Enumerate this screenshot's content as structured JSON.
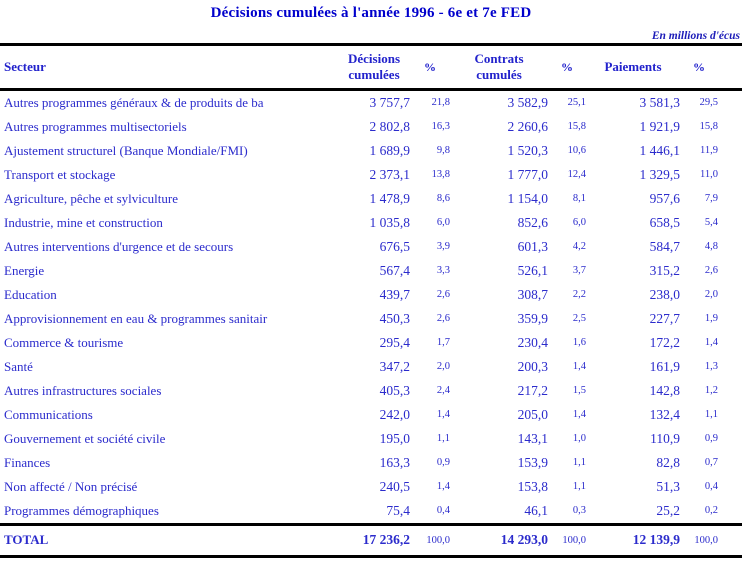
{
  "title": "Décisions cumulées à l'année 1996 - 6e et 7e FED",
  "unit_note": "En millions d'écus",
  "colors": {
    "title_blue": "#0000cc",
    "text_blue": "#2b2bcc",
    "note_blue": "#1c1cb8",
    "rule_black": "#000000",
    "background": "#ffffff"
  },
  "table": {
    "header": {
      "secteur": "Secteur",
      "decisions_line1": "Décisions",
      "decisions_line2": "cumulées",
      "pct": "%",
      "contrats_line1": "Contrats",
      "contrats_line2": "cumulés",
      "paiements": "Paiements"
    },
    "row_keys": [
      "secteur",
      "decisions",
      "decisions_pct",
      "contrats",
      "contrats_pct",
      "paiements",
      "paiements_pct"
    ],
    "cell_classes": [
      "cell-secteur",
      "cell-num",
      "cell-pct",
      "cell-num",
      "cell-pct",
      "cell-num",
      "cell-pct cell-pct-last"
    ],
    "rows": [
      {
        "secteur": "Autres programmes généraux & de produits de ba",
        "decisions": "3 757,7",
        "decisions_pct": "21,8",
        "contrats": "3 582,9",
        "contrats_pct": "25,1",
        "paiements": "3 581,3",
        "paiements_pct": "29,5"
      },
      {
        "secteur": "Autres programmes multisectoriels",
        "decisions": "2 802,8",
        "decisions_pct": "16,3",
        "contrats": "2 260,6",
        "contrats_pct": "15,8",
        "paiements": "1 921,9",
        "paiements_pct": "15,8"
      },
      {
        "secteur": "Ajustement structurel (Banque Mondiale/FMI)",
        "decisions": "1 689,9",
        "decisions_pct": "9,8",
        "contrats": "1 520,3",
        "contrats_pct": "10,6",
        "paiements": "1 446,1",
        "paiements_pct": "11,9"
      },
      {
        "secteur": "Transport et stockage",
        "decisions": "2 373,1",
        "decisions_pct": "13,8",
        "contrats": "1 777,0",
        "contrats_pct": "12,4",
        "paiements": "1 329,5",
        "paiements_pct": "11,0"
      },
      {
        "secteur": "Agriculture, pêche et sylviculture",
        "decisions": "1 478,9",
        "decisions_pct": "8,6",
        "contrats": "1 154,0",
        "contrats_pct": "8,1",
        "paiements": "957,6",
        "paiements_pct": "7,9"
      },
      {
        "secteur": "Industrie, mine et construction",
        "decisions": "1 035,8",
        "decisions_pct": "6,0",
        "contrats": "852,6",
        "contrats_pct": "6,0",
        "paiements": "658,5",
        "paiements_pct": "5,4"
      },
      {
        "secteur": "Autres interventions d'urgence et de secours",
        "decisions": "676,5",
        "decisions_pct": "3,9",
        "contrats": "601,3",
        "contrats_pct": "4,2",
        "paiements": "584,7",
        "paiements_pct": "4,8"
      },
      {
        "secteur": "Energie",
        "decisions": "567,4",
        "decisions_pct": "3,3",
        "contrats": "526,1",
        "contrats_pct": "3,7",
        "paiements": "315,2",
        "paiements_pct": "2,6"
      },
      {
        "secteur": "Education",
        "decisions": "439,7",
        "decisions_pct": "2,6",
        "contrats": "308,7",
        "contrats_pct": "2,2",
        "paiements": "238,0",
        "paiements_pct": "2,0"
      },
      {
        "secteur": "Approvisionnement en eau & programmes sanitair",
        "decisions": "450,3",
        "decisions_pct": "2,6",
        "contrats": "359,9",
        "contrats_pct": "2,5",
        "paiements": "227,7",
        "paiements_pct": "1,9"
      },
      {
        "secteur": "Commerce & tourisme",
        "decisions": "295,4",
        "decisions_pct": "1,7",
        "contrats": "230,4",
        "contrats_pct": "1,6",
        "paiements": "172,2",
        "paiements_pct": "1,4"
      },
      {
        "secteur": "Santé",
        "decisions": "347,2",
        "decisions_pct": "2,0",
        "contrats": "200,3",
        "contrats_pct": "1,4",
        "paiements": "161,9",
        "paiements_pct": "1,3"
      },
      {
        "secteur": "Autres infrastructures sociales",
        "decisions": "405,3",
        "decisions_pct": "2,4",
        "contrats": "217,2",
        "contrats_pct": "1,5",
        "paiements": "142,8",
        "paiements_pct": "1,2"
      },
      {
        "secteur": "Communications",
        "decisions": "242,0",
        "decisions_pct": "1,4",
        "contrats": "205,0",
        "contrats_pct": "1,4",
        "paiements": "132,4",
        "paiements_pct": "1,1"
      },
      {
        "secteur": "Gouvernement et société civile",
        "decisions": "195,0",
        "decisions_pct": "1,1",
        "contrats": "143,1",
        "contrats_pct": "1,0",
        "paiements": "110,9",
        "paiements_pct": "0,9"
      },
      {
        "secteur": "Finances",
        "decisions": "163,3",
        "decisions_pct": "0,9",
        "contrats": "153,9",
        "contrats_pct": "1,1",
        "paiements": "82,8",
        "paiements_pct": "0,7"
      },
      {
        "secteur": "Non affecté / Non précisé",
        "decisions": "240,5",
        "decisions_pct": "1,4",
        "contrats": "153,8",
        "contrats_pct": "1,1",
        "paiements": "51,3",
        "paiements_pct": "0,4"
      },
      {
        "secteur": "Programmes démographiques",
        "decisions": "75,4",
        "decisions_pct": "0,4",
        "contrats": "46,1",
        "contrats_pct": "0,3",
        "paiements": "25,2",
        "paiements_pct": "0,2"
      }
    ],
    "total": {
      "secteur": "TOTAL",
      "decisions": "17 236,2",
      "decisions_pct": "100,0",
      "contrats": "14 293,0",
      "contrats_pct": "100,0",
      "paiements": "12 139,9",
      "paiements_pct": "100,0"
    }
  }
}
